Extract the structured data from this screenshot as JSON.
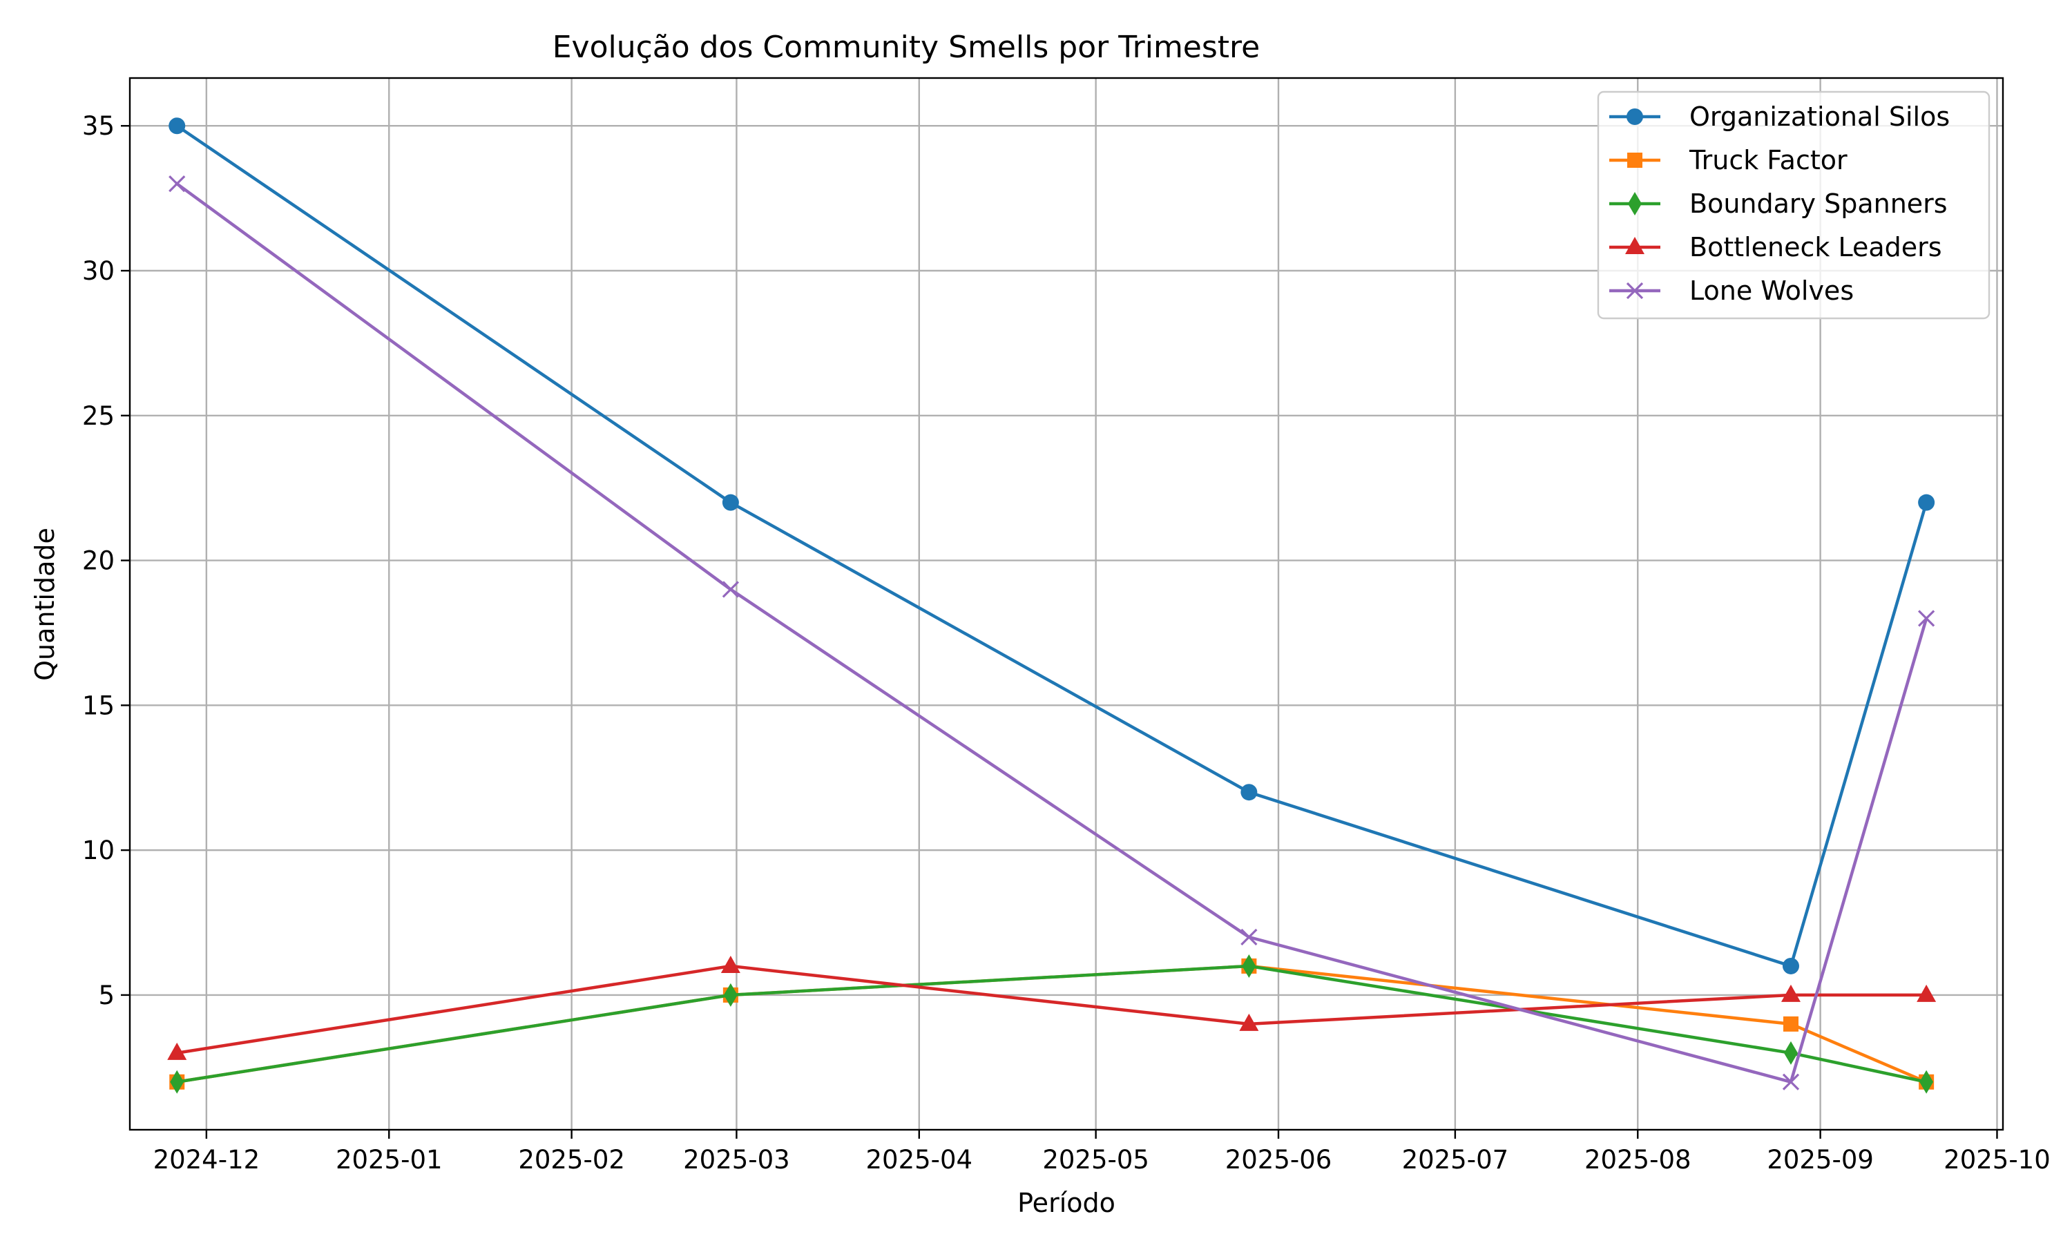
{
  "chart_data": {
    "type": "line",
    "title": "Evolução dos Community Smells por Trimestre",
    "xlabel": "Período",
    "ylabel": "Quantidade",
    "x": [
      "2024-11-26",
      "2025-02-28",
      "2025-05-27",
      "2025-08-27",
      "2025-09-19"
    ],
    "xlim": [
      "2024-11-18",
      "2025-10-02"
    ],
    "xticks": [
      "2024-12",
      "2025-01",
      "2025-02",
      "2025-03",
      "2025-04",
      "2025-05",
      "2025-06",
      "2025-07",
      "2025-08",
      "2025-09",
      "2025-10"
    ],
    "ylim": [
      0.35,
      36.65
    ],
    "yticks": [
      5,
      10,
      15,
      20,
      25,
      30,
      35
    ],
    "grid": true,
    "legend_position": "top-right",
    "series": [
      {
        "name": "Organizational Silos",
        "color": "#1f77b4",
        "marker": "circle",
        "values": [
          35,
          22,
          12,
          6,
          22
        ]
      },
      {
        "name": "Truck Factor",
        "color": "#ff7f0e",
        "marker": "square",
        "values": [
          2,
          5,
          6,
          4,
          2
        ]
      },
      {
        "name": "Boundary Spanners",
        "color": "#2ca02c",
        "marker": "thin-diamond",
        "values": [
          2,
          5,
          6,
          3,
          2
        ]
      },
      {
        "name": "Bottleneck Leaders",
        "color": "#d62728",
        "marker": "triangle",
        "values": [
          3,
          6,
          4,
          5,
          5
        ]
      },
      {
        "name": "Lone Wolves",
        "color": "#9467bd",
        "marker": "x",
        "values": [
          33,
          19,
          7,
          2,
          18
        ]
      }
    ]
  }
}
